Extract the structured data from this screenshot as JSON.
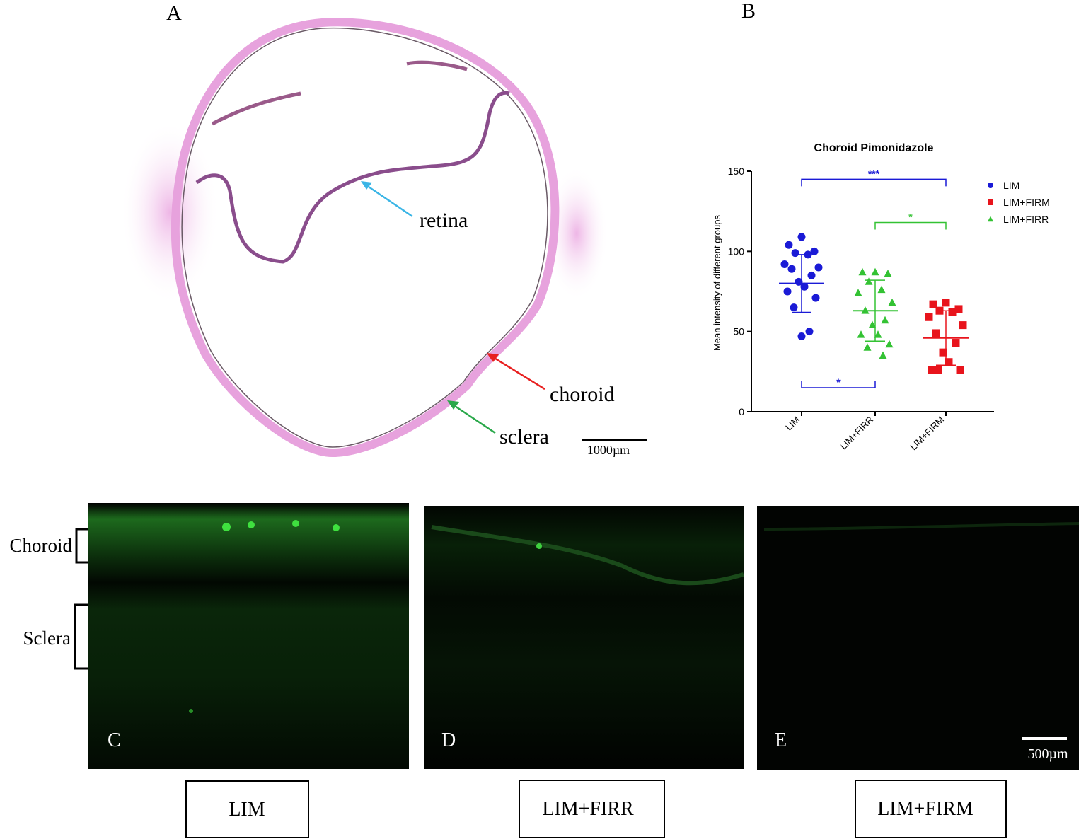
{
  "panel_labels": [
    "A",
    "B",
    "C",
    "D",
    "E"
  ],
  "panel_a": {
    "annotations": [
      "retina",
      "choroid",
      "sclera"
    ],
    "scale_bar": "1000µm"
  },
  "chart_data": {
    "type": "strip",
    "title": "Choroid Pimonidazole",
    "y_label": "Mean intensity of different groups",
    "categories": [
      "LIM",
      "LIM+FIRR",
      "LIM+FIRM"
    ],
    "ylim": [
      0,
      150
    ],
    "yticks": [
      0,
      50,
      100,
      150
    ],
    "legend": "top-right",
    "series": [
      {
        "name": "LIM",
        "color": "#1a1ad6",
        "marker": "circle",
        "values": [
          109,
          104,
          100,
          99,
          98,
          92,
          90,
          89,
          85,
          81,
          78,
          75,
          71,
          65,
          50,
          47
        ],
        "mean": 80,
        "sd": 18
      },
      {
        "name": "LIM+FIRM",
        "color": "#e8141c",
        "marker": "square",
        "values": [
          68,
          67,
          64,
          63,
          62,
          59,
          54,
          49,
          43,
          37,
          31,
          26,
          26,
          26
        ],
        "mean": 46,
        "sd": 17
      },
      {
        "name": "LIM+FIRR",
        "color": "#33c233",
        "marker": "triangle",
        "values": [
          87,
          87,
          86,
          81,
          76,
          74,
          68,
          63,
          57,
          54,
          48,
          48,
          42,
          40,
          35
        ],
        "mean": 63,
        "sd": 19
      }
    ],
    "significance": [
      {
        "text": "***",
        "pair": [
          0,
          2
        ],
        "y": 145,
        "color": "#1a1ad6",
        "tips": "down"
      },
      {
        "text": "*",
        "pair": [
          1,
          2
        ],
        "y": 118,
        "color": "#33c233",
        "tips": "down"
      },
      {
        "text": "*",
        "pair": [
          0,
          1
        ],
        "y": 15,
        "color": "#1a1ad6",
        "tips": "up"
      }
    ]
  },
  "panel_c": {
    "layer_labels": [
      "Choroid",
      "Sclera"
    ],
    "scale_bar": "500µm"
  },
  "group_labels": [
    "LIM",
    "LIM+FIRR",
    "LIM+FIRM"
  ]
}
